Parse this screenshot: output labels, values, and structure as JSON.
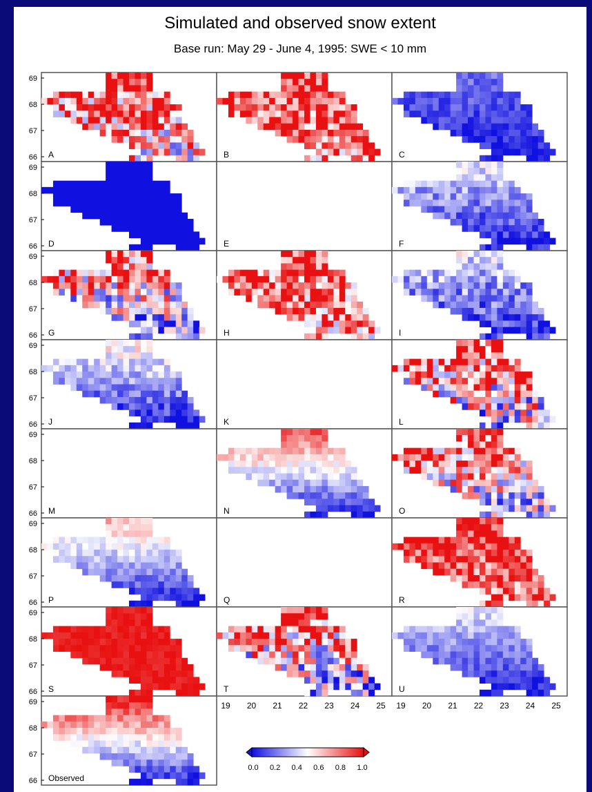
{
  "title": "Simulated and observed snow extent",
  "subtitle": "Base run: May 29 - June 4, 1995: SWE < 10 mm",
  "chart_data": {
    "type": "heatmap",
    "y_ticks": [
      "69",
      "68",
      "67",
      "66"
    ],
    "x_ticks": [
      "19",
      "20",
      "21",
      "22",
      "23",
      "24",
      "25"
    ],
    "colorbar": {
      "ticks": [
        "0.0",
        "0.2",
        "0.4",
        "0.6",
        "0.8",
        "1.0"
      ],
      "range": [
        0.0,
        1.0
      ],
      "low_color": "#1010e0",
      "mid_color": "#ffffff",
      "high_color": "#e81010"
    },
    "panels": [
      {
        "label": "A",
        "north_snow": 0.95,
        "south_snow": 0.55,
        "noise": 0.45,
        "empty": false
      },
      {
        "label": "B",
        "north_snow": 0.95,
        "south_snow": 0.75,
        "noise": 0.35,
        "empty": false
      },
      {
        "label": "C",
        "north_snow": 0.2,
        "south_snow": 0.02,
        "noise": 0.1,
        "empty": false
      },
      {
        "label": "D",
        "north_snow": 0.0,
        "south_snow": 0.0,
        "noise": 0.0,
        "empty": false
      },
      {
        "label": "E",
        "empty": true
      },
      {
        "label": "F",
        "north_snow": 0.45,
        "south_snow": 0.02,
        "noise": 0.15,
        "empty": false
      },
      {
        "label": "G",
        "north_snow": 0.85,
        "south_snow": 0.25,
        "noise": 0.45,
        "empty": false
      },
      {
        "label": "H",
        "north_snow": 0.9,
        "south_snow": 0.7,
        "noise": 0.4,
        "empty": false
      },
      {
        "label": "I",
        "north_snow": 0.45,
        "south_snow": 0.05,
        "noise": 0.2,
        "empty": false
      },
      {
        "label": "J",
        "north_snow": 0.55,
        "south_snow": 0.02,
        "noise": 0.15,
        "empty": false
      },
      {
        "label": "K",
        "empty": true
      },
      {
        "label": "L",
        "north_snow": 0.95,
        "south_snow": 0.35,
        "noise": 0.5,
        "empty": false
      },
      {
        "label": "M",
        "empty": true
      },
      {
        "label": "N",
        "north_snow": 0.85,
        "south_snow": 0.02,
        "noise": 0.1,
        "empty": false
      },
      {
        "label": "O",
        "north_snow": 0.9,
        "south_snow": 0.35,
        "noise": 0.4,
        "empty": false
      },
      {
        "label": "P",
        "north_snow": 0.65,
        "south_snow": 0.02,
        "noise": 0.1,
        "empty": false
      },
      {
        "label": "Q",
        "empty": true
      },
      {
        "label": "R",
        "north_snow": 0.98,
        "south_snow": 0.8,
        "noise": 0.3,
        "empty": false
      },
      {
        "label": "S",
        "north_snow": 0.98,
        "south_snow": 0.97,
        "noise": 0.05,
        "empty": false
      },
      {
        "label": "T",
        "north_snow": 0.9,
        "south_snow": 0.25,
        "noise": 0.45,
        "empty": false
      },
      {
        "label": "U",
        "north_snow": 0.45,
        "south_snow": 0.02,
        "noise": 0.1,
        "empty": false
      },
      {
        "label": "Observed",
        "north_snow": 0.98,
        "south_snow": 0.02,
        "noise": 0.1,
        "empty": false
      }
    ]
  }
}
